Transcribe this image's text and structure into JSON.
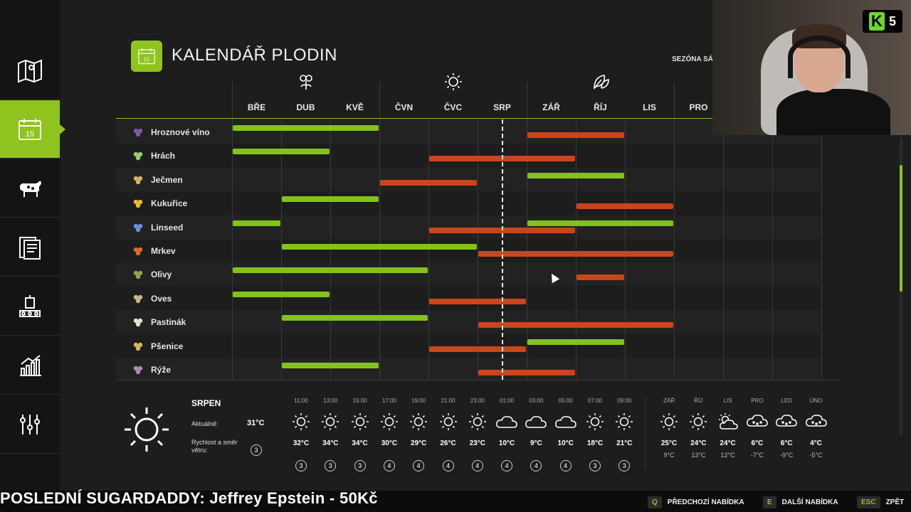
{
  "header": {
    "title": "KALENDÁŘ PLODIN",
    "season_label": "SEZÓNA SÁZ",
    "date_icon_text": "15"
  },
  "sidebar": {
    "items": [
      {
        "name": "map-icon"
      },
      {
        "name": "calendar-icon",
        "text": "15",
        "active": true
      },
      {
        "name": "animals-icon"
      },
      {
        "name": "contracts-icon"
      },
      {
        "name": "production-icon"
      },
      {
        "name": "statistics-icon"
      },
      {
        "name": "settings-icon"
      }
    ]
  },
  "calendar": {
    "months": [
      "BŘE",
      "DUB",
      "KVĚ",
      "ČVN",
      "ČVC",
      "SRP",
      "ZÁŘ",
      "ŘÍJ",
      "LIS",
      "PRO"
    ],
    "seasons": [
      "spring-flower-icon",
      "summer-sun-icon",
      "autumn-leaf-icon"
    ],
    "crops": [
      {
        "label": "Hroznové víno",
        "icon": "grape-icon"
      },
      {
        "label": "Hrách",
        "icon": "pea-icon"
      },
      {
        "label": "Ječmen",
        "icon": "barley-icon"
      },
      {
        "label": "Kukuřice",
        "icon": "corn-icon"
      },
      {
        "label": "Linseed",
        "icon": "linseed-icon"
      },
      {
        "label": "Mrkev",
        "icon": "carrot-icon"
      },
      {
        "label": "Olivy",
        "icon": "olive-icon"
      },
      {
        "label": "Oves",
        "icon": "oat-icon"
      },
      {
        "label": "Pastinák",
        "icon": "parsnip-icon"
      },
      {
        "label": "Pšenice",
        "icon": "wheat-icon"
      },
      {
        "label": "Rýže",
        "icon": "rice-icon"
      }
    ],
    "colors": {
      "sowing": "#84c21b",
      "harvest": "#c9461c",
      "accent": "#8fc31f"
    }
  },
  "weather": {
    "month": "SRPEN",
    "current_label": "Aktuálně:",
    "current_value": "31°C",
    "wind_label": "Rychlost a směr větru:",
    "wind_value": "3",
    "hourly": [
      {
        "time": "11:00",
        "icon": "sun-icon",
        "temp": "32°C",
        "wind": "3"
      },
      {
        "time": "13:00",
        "icon": "sun-icon",
        "temp": "34°C",
        "wind": "3"
      },
      {
        "time": "15:00",
        "icon": "sun-icon",
        "temp": "34°C",
        "wind": "3"
      },
      {
        "time": "17:00",
        "icon": "sun-icon",
        "temp": "30°C",
        "wind": "4"
      },
      {
        "time": "19:00",
        "icon": "sun-icon",
        "temp": "29°C",
        "wind": "4"
      },
      {
        "time": "21:00",
        "icon": "sun-icon",
        "temp": "26°C",
        "wind": "4"
      },
      {
        "time": "23:00",
        "icon": "sun-icon",
        "temp": "23°C",
        "wind": "4"
      },
      {
        "time": "01:00",
        "icon": "cloud-icon",
        "temp": "10°C",
        "wind": "4"
      },
      {
        "time": "03:00",
        "icon": "cloud-icon",
        "temp": "9°C",
        "wind": "4"
      },
      {
        "time": "05:00",
        "icon": "cloud-icon",
        "temp": "10°C",
        "wind": "4"
      },
      {
        "time": "07:00",
        "icon": "sun-icon",
        "temp": "18°C",
        "wind": "3"
      },
      {
        "time": "09:00",
        "icon": "sun-icon",
        "temp": "21°C",
        "wind": "3"
      }
    ],
    "monthly": [
      {
        "month": "ZÁŘ",
        "icon": "sun-icon",
        "high": "25°C",
        "low": "9°C"
      },
      {
        "month": "ŘÍJ",
        "icon": "sun-icon",
        "high": "24°C",
        "low": "13°C"
      },
      {
        "month": "LIS",
        "icon": "partly-cloudy-icon",
        "high": "24°C",
        "low": "12°C"
      },
      {
        "month": "PRO",
        "icon": "snow-icon",
        "high": "6°C",
        "low": "-7°C"
      },
      {
        "month": "LED",
        "icon": "snow-icon",
        "high": "6°C",
        "low": "-9°C"
      },
      {
        "month": "ÚNO",
        "icon": "snow-icon",
        "high": "4°C",
        "low": "-5°C"
      }
    ]
  },
  "ticker": {
    "text": "POSLEDNÍ SUGARDADDY: Jeffrey Epstein - 50Kč"
  },
  "hints": [
    {
      "key": "Q",
      "label": "PŘEDCHOZÍ NABÍDKA"
    },
    {
      "key": "E",
      "label": "DALŠÍ NABÍDKA"
    },
    {
      "key": "ESC",
      "label": "ZPĚT"
    }
  ],
  "webcam": {
    "logo_letter": "K",
    "logo_number": "5"
  }
}
